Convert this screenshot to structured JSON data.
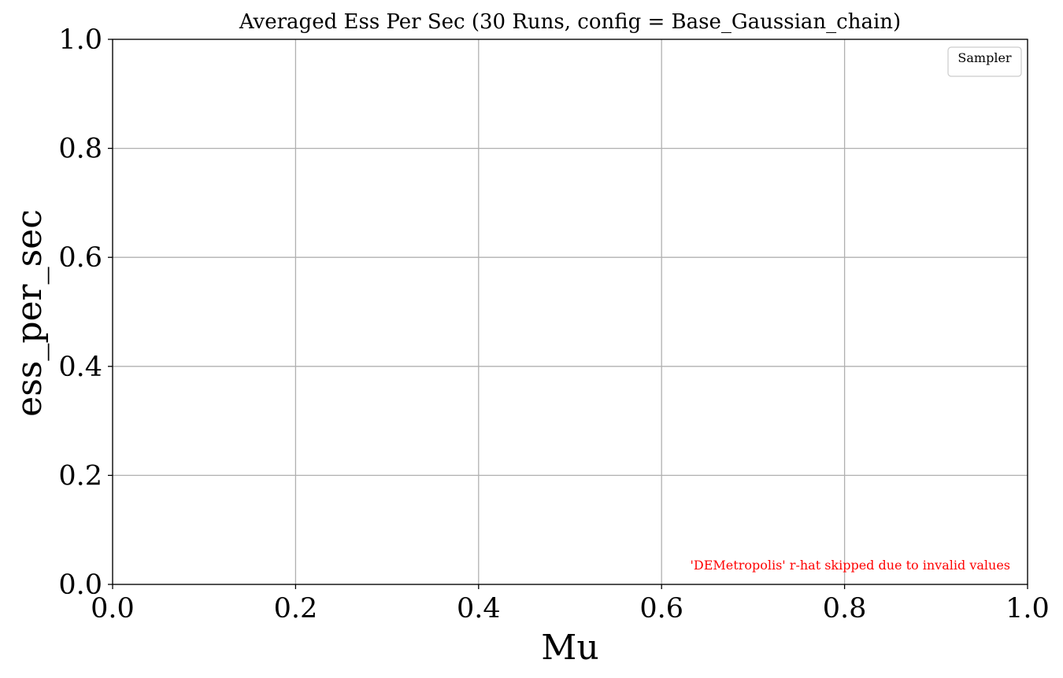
{
  "chart_data": {
    "type": "line",
    "title": "Averaged Ess Per Sec (30 Runs, config = Base_Gaussian_chain)",
    "xlabel": "Mu",
    "ylabel": "ess_per_sec",
    "xlim": [
      0.0,
      1.0
    ],
    "ylim": [
      0.0,
      1.0
    ],
    "xticks": [
      "0.0",
      "0.2",
      "0.4",
      "0.6",
      "0.8",
      "1.0"
    ],
    "yticks": [
      "0.0",
      "0.2",
      "0.4",
      "0.6",
      "0.8",
      "1.0"
    ],
    "grid": true,
    "legend": {
      "title": "Sampler",
      "placement": "top-right",
      "entries": []
    },
    "series": [],
    "annotation": {
      "text": "'DEMetropolis' r-hat skipped due to invalid values",
      "color": "#ff0000",
      "placement": "bottom-right"
    }
  }
}
